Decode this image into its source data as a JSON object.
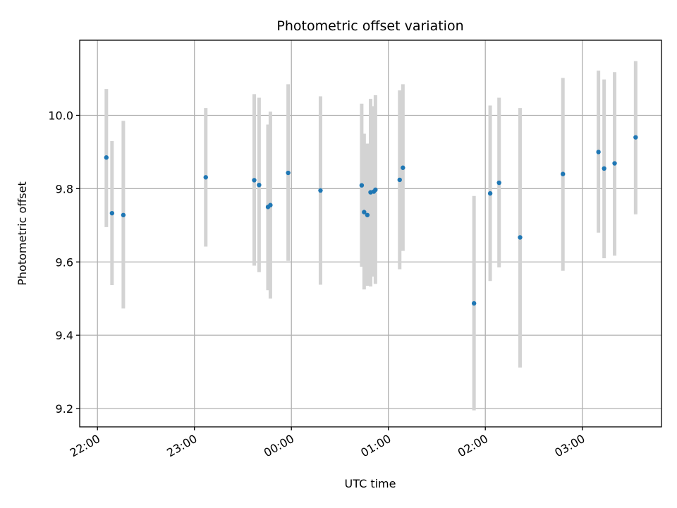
{
  "chart_data": {
    "type": "scatter",
    "title": "Photometric offset variation",
    "xlabel": "UTC time",
    "ylabel": "Photometric offset",
    "x_unit": "UTC time (HH:MM), night spanning midnight",
    "xlim": [
      "21:49",
      "03:49"
    ],
    "ylim": [
      9.15,
      10.205
    ],
    "x_ticks": [
      "22:00",
      "23:00",
      "00:00",
      "01:00",
      "02:00",
      "03:00"
    ],
    "y_ticks": [
      9.2,
      9.4,
      9.6,
      9.8,
      10.0
    ],
    "y_tick_labels": [
      "9.2",
      "9.4",
      "9.6",
      "9.8",
      "10.0"
    ],
    "grid": true,
    "colors": {
      "point": "#1f77b4",
      "errorbar": "#d3d3d3",
      "grid": "#b0b0b0"
    },
    "series": [
      {
        "points": [
          {
            "x": "22:05:30",
            "y": 9.885,
            "ylow": 9.695,
            "yhigh": 10.072
          },
          {
            "x": "22:09:00",
            "y": 9.733,
            "ylow": 9.537,
            "yhigh": 9.93
          },
          {
            "x": "22:16:00",
            "y": 9.728,
            "ylow": 9.473,
            "yhigh": 9.985
          },
          {
            "x": "23:07:00",
            "y": 9.831,
            "ylow": 9.642,
            "yhigh": 10.02
          },
          {
            "x": "23:37:00",
            "y": 9.823,
            "ylow": 9.59,
            "yhigh": 10.058
          },
          {
            "x": "23:40:00",
            "y": 9.81,
            "ylow": 9.572,
            "yhigh": 10.048
          },
          {
            "x": "23:45:30",
            "y": 9.75,
            "ylow": 9.523,
            "yhigh": 9.975
          },
          {
            "x": "23:47:00",
            "y": 9.755,
            "ylow": 9.5,
            "yhigh": 10.01
          },
          {
            "x": "23:58:00",
            "y": 9.843,
            "ylow": 9.603,
            "yhigh": 10.085
          },
          {
            "x": "00:18:00",
            "y": 9.795,
            "ylow": 9.538,
            "yhigh": 10.052
          },
          {
            "x": "00:43:30",
            "y": 9.809,
            "ylow": 9.587,
            "yhigh": 10.032
          },
          {
            "x": "00:45:00",
            "y": 9.736,
            "ylow": 9.525,
            "yhigh": 9.95
          },
          {
            "x": "00:47:00",
            "y": 9.728,
            "ylow": 9.535,
            "yhigh": 9.923
          },
          {
            "x": "00:49:00",
            "y": 9.79,
            "ylow": 9.533,
            "yhigh": 10.045
          },
          {
            "x": "00:51:00",
            "y": 9.792,
            "ylow": 9.56,
            "yhigh": 10.025
          },
          {
            "x": "00:52:00",
            "y": 9.797,
            "ylow": 9.54,
            "yhigh": 10.055
          },
          {
            "x": "01:07:00",
            "y": 9.824,
            "ylow": 9.58,
            "yhigh": 10.068
          },
          {
            "x": "01:09:00",
            "y": 9.857,
            "ylow": 9.63,
            "yhigh": 10.085
          },
          {
            "x": "01:53:00",
            "y": 9.487,
            "ylow": 9.195,
            "yhigh": 9.78
          },
          {
            "x": "02:03:00",
            "y": 9.787,
            "ylow": 9.548,
            "yhigh": 10.027
          },
          {
            "x": "02:08:30",
            "y": 9.816,
            "ylow": 9.585,
            "yhigh": 10.048
          },
          {
            "x": "02:21:30",
            "y": 9.667,
            "ylow": 9.312,
            "yhigh": 10.02
          },
          {
            "x": "02:48:00",
            "y": 9.84,
            "ylow": 9.576,
            "yhigh": 10.102
          },
          {
            "x": "03:10:00",
            "y": 9.9,
            "ylow": 9.68,
            "yhigh": 10.122
          },
          {
            "x": "03:13:30",
            "y": 9.855,
            "ylow": 9.61,
            "yhigh": 10.098
          },
          {
            "x": "03:20:00",
            "y": 9.869,
            "ylow": 9.617,
            "yhigh": 10.118
          },
          {
            "x": "03:33:00",
            "y": 9.94,
            "ylow": 9.73,
            "yhigh": 10.148
          }
        ]
      }
    ]
  }
}
